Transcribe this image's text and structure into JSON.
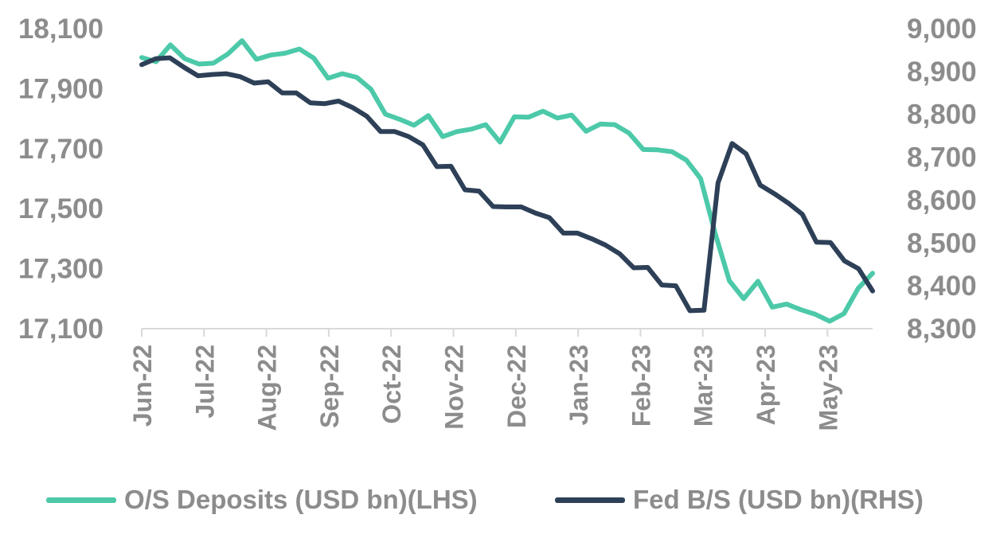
{
  "chart_data": {
    "type": "line",
    "title": "",
    "xlabel": "",
    "ylabel_left": "",
    "ylabel_right": "",
    "grid": false,
    "legend_position": "bottom",
    "x_tick_labels": [
      "Jun-22",
      "Jul-22",
      "Aug-22",
      "Sep-22",
      "Oct-22",
      "Nov-22",
      "Dec-22",
      "Jan-23",
      "Feb-23",
      "Mar-23",
      "Apr-23",
      "May-23"
    ],
    "y_left": {
      "min": 17100,
      "max": 18100,
      "ticks": [
        "17,100",
        "17,300",
        "17,500",
        "17,700",
        "17,900",
        "18,100"
      ]
    },
    "y_right": {
      "min": 8300,
      "max": 9000,
      "ticks": [
        "8,300",
        "8,400",
        "8,500",
        "8,600",
        "8,700",
        "8,800",
        "8,900",
        "9,000"
      ]
    },
    "series": [
      {
        "name": "O/S Deposits (USD bn)(LHS)",
        "axis": "left",
        "color": "#4cc9a8",
        "values": [
          18004,
          17990,
          18046,
          18000,
          17982,
          17985,
          18015,
          18060,
          17998,
          18012,
          18018,
          18032,
          18002,
          17935,
          17950,
          17938,
          17898,
          17815,
          17798,
          17778,
          17810,
          17740,
          17757,
          17765,
          17780,
          17722,
          17806,
          17805,
          17825,
          17802,
          17812,
          17758,
          17782,
          17780,
          17752,
          17697,
          17696,
          17690,
          17662,
          17600,
          17420,
          17260,
          17200,
          17258,
          17172,
          17182,
          17163,
          17148,
          17125,
          17150,
          17235,
          17285
        ]
      },
      {
        "name": "Fed B/S (USD bn)(RHS)",
        "axis": "right",
        "color": "#2d4057",
        "values": [
          8916,
          8930,
          8932,
          8910,
          8890,
          8893,
          8895,
          8888,
          8873,
          8876,
          8850,
          8850,
          8827,
          8825,
          8831,
          8816,
          8796,
          8760,
          8760,
          8748,
          8729,
          8678,
          8679,
          8624,
          8621,
          8585,
          8584,
          8584,
          8570,
          8559,
          8523,
          8523,
          8510,
          8495,
          8475,
          8442,
          8443,
          8402,
          8400,
          8342,
          8343,
          8640,
          8732,
          8708,
          8635,
          8615,
          8593,
          8567,
          8502,
          8501,
          8458,
          8440,
          8388
        ]
      }
    ]
  },
  "legend": {
    "deposits_label": "O/S Deposits (USD bn)(LHS)",
    "fed_label": "Fed B/S (USD bn)(RHS)"
  },
  "colors": {
    "deposits": "#4cc9a8",
    "fed": "#2d4057",
    "axis": "#d9d9d9",
    "tick_text": "#8c8c8c"
  }
}
